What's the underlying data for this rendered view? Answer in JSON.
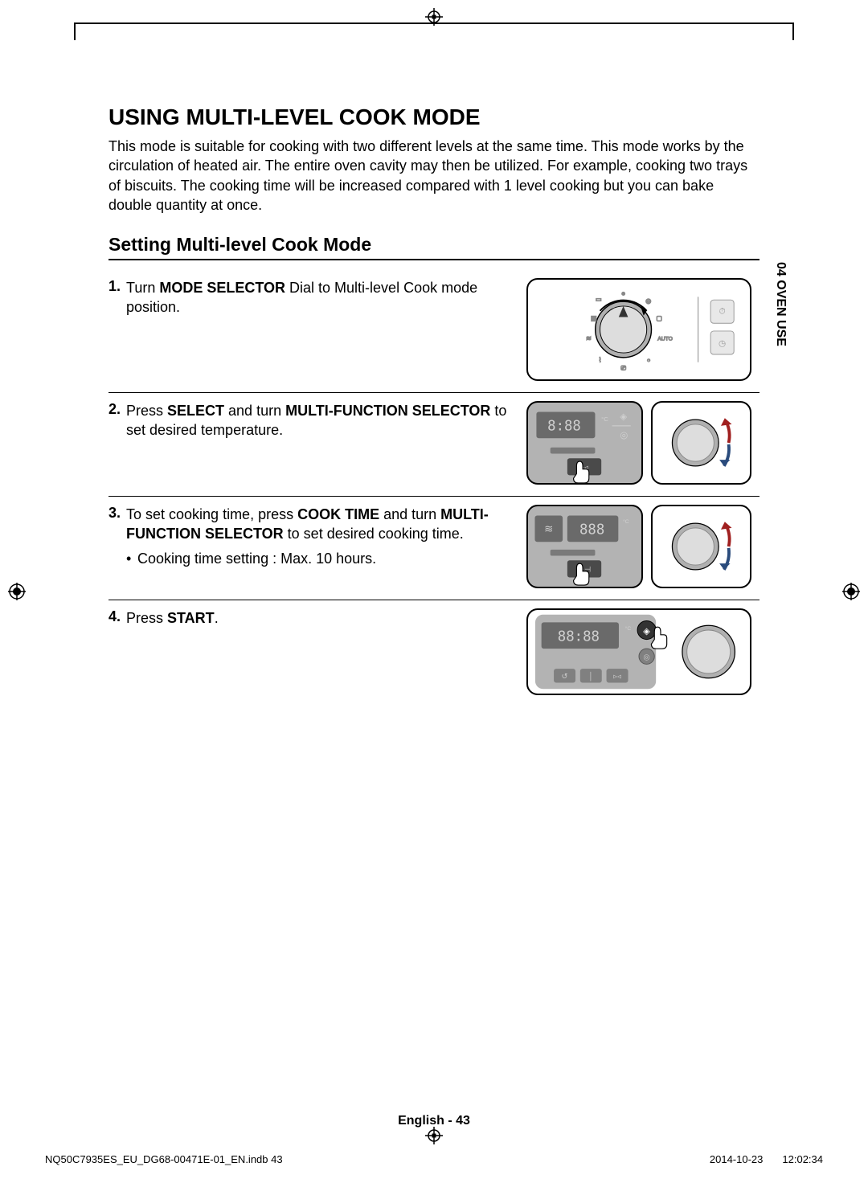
{
  "page": {
    "main_title": "USING MULTI-LEVEL COOK MODE",
    "intro": "This mode is suitable for cooking with two different levels at the same time. This mode works by the circulation of heated air. The entire oven cavity may then be utilized. For example, cooking two trays of biscuits. The cooking time will be increased compared with 1 level cooking but you can bake double quantity at once.",
    "sub_title": "Setting Multi-level Cook Mode",
    "side_label": "04 OVEN USE",
    "footer": "English - 43"
  },
  "steps": [
    {
      "num": "1.",
      "parts": [
        {
          "t": "Turn "
        },
        {
          "t": "MODE SELECTOR",
          "b": true
        },
        {
          "t": " Dial to Multi-level Cook mode position."
        }
      ]
    },
    {
      "num": "2.",
      "parts": [
        {
          "t": "Press "
        },
        {
          "t": "SELECT",
          "b": true
        },
        {
          "t": " and turn "
        },
        {
          "t": "MULTI-FUNCTION SELECTOR",
          "b": true
        },
        {
          "t": " to set desired temperature."
        }
      ]
    },
    {
      "num": "3.",
      "parts": [
        {
          "t": "To set cooking time, press "
        },
        {
          "t": "COOK TIME",
          "b": true
        },
        {
          "t": " and turn "
        },
        {
          "t": "MULTI-FUNCTION SELECTOR",
          "b": true
        },
        {
          "t": " to set desired cooking time."
        }
      ],
      "bullet": "Cooking time setting : Max. 10 hours."
    },
    {
      "num": "4.",
      "parts": [
        {
          "t": "Press "
        },
        {
          "t": "START",
          "b": true
        },
        {
          "t": "."
        }
      ]
    }
  ],
  "display": {
    "time_readout": "8:88",
    "num_readout": "888",
    "full_readout": "88:88"
  },
  "print": {
    "filename": "NQ50C7935ES_EU_DG68-00471E-01_EN.indb   43",
    "date": "2014-10-23",
    "time": "12:02:34"
  },
  "colors": {
    "panel_gray": "#b3b3b3",
    "lcd_bg": "#6a6a6a",
    "lcd_text": "#d0d0d0",
    "arrow_blue": "#2a4b7c",
    "arrow_red": "#a02020"
  }
}
